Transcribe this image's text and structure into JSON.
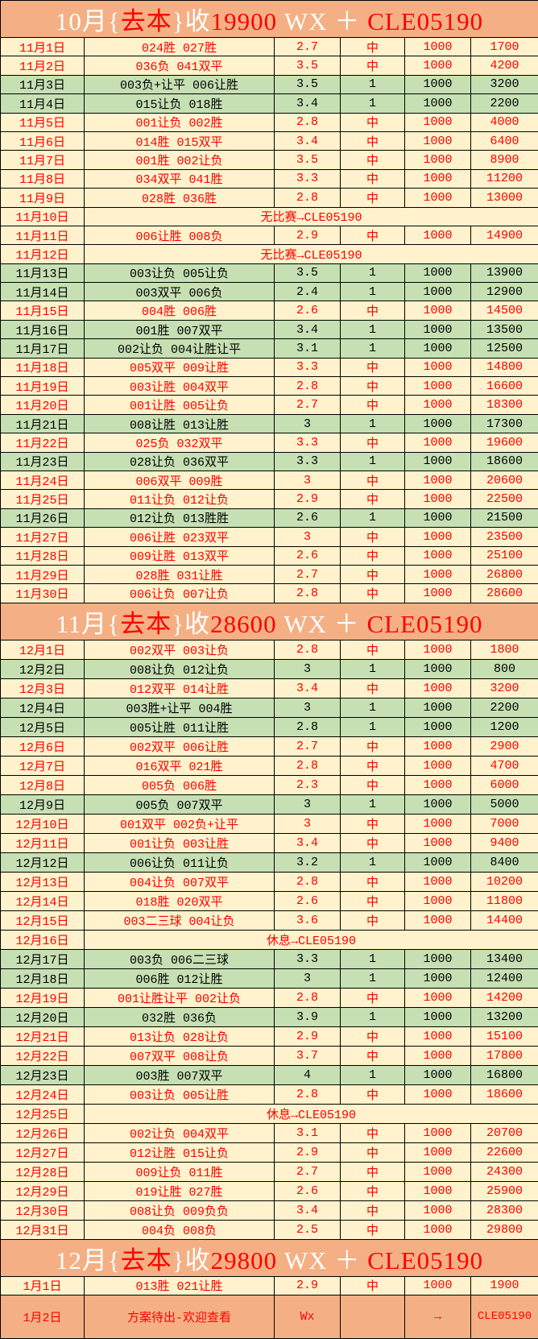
{
  "colors": {
    "header_bg": "#f4b084",
    "win_bg": "#fff2cc",
    "lose_bg": "#c6e0b4",
    "red": "#ff0000"
  },
  "sections": [
    {
      "header": [
        {
          "t": "10月",
          "c": "w"
        },
        {
          "t": "{",
          "c": "w"
        },
        {
          "t": "去本",
          "c": "r"
        },
        {
          "t": "}",
          "c": "w"
        },
        {
          "t": "收",
          "c": "w"
        },
        {
          "t": "19900",
          "c": "r"
        },
        {
          "t": " WX ",
          "c": "w"
        },
        {
          "t": "＋",
          "c": "w"
        },
        {
          "t": " CLE05190",
          "c": "r"
        }
      ],
      "cls": "nov",
      "rows": [
        [
          "11月1日",
          "024胜 027胜",
          "2.7",
          "中",
          "1000",
          "1700"
        ],
        [
          "11月2日",
          "036负 041双平",
          "3.5",
          "中",
          "1000",
          "4200"
        ],
        [
          "11月3日",
          "003负+让平 006让胜",
          "3.5",
          "1",
          "1000",
          "3200"
        ],
        [
          "11月4日",
          "015让负 018胜",
          "3.4",
          "1",
          "1000",
          "2200"
        ],
        [
          "11月5日",
          "001让负 002胜",
          "2.8",
          "中",
          "1000",
          "4000"
        ],
        [
          "11月6日",
          "014胜 015双平",
          "3.4",
          "中",
          "1000",
          "6400"
        ],
        [
          "11月7日",
          "001胜 002让负",
          "3.5",
          "中",
          "1000",
          "8900"
        ],
        [
          "11月8日",
          "034双平 041胜",
          "3.3",
          "中",
          "1000",
          "11200"
        ],
        [
          "11月9日",
          "028胜 036胜",
          "2.8",
          "中",
          "1000",
          "13000"
        ],
        [
          "11月10日",
          "无比赛→CLE05190"
        ],
        [
          "11月11日",
          "006让胜 008负",
          "2.9",
          "中",
          "1000",
          "14900"
        ],
        [
          "11月12日",
          "无比赛→CLE05190"
        ],
        [
          "11月13日",
          "003让负 005让负",
          "3.5",
          "1",
          "1000",
          "13900"
        ],
        [
          "11月14日",
          "003双平 006负",
          "2.4",
          "1",
          "1000",
          "12900"
        ],
        [
          "11月15日",
          "004胜 006胜",
          "2.6",
          "中",
          "1000",
          "14500"
        ],
        [
          "11月16日",
          "001胜 007双平",
          "3.4",
          "1",
          "1000",
          "13500"
        ],
        [
          "11月17日",
          "002让负 004让胜让平",
          "3.1",
          "1",
          "1000",
          "12500"
        ],
        [
          "11月18日",
          "005双平 009让胜",
          "3.3",
          "中",
          "1000",
          "14800"
        ],
        [
          "11月19日",
          "003让胜 004双平",
          "2.8",
          "中",
          "1000",
          "16600"
        ],
        [
          "11月20日",
          "001让胜 005让负",
          "2.7",
          "中",
          "1000",
          "18300"
        ],
        [
          "11月21日",
          "008让胜 013让胜",
          "3",
          "1",
          "1000",
          "17300"
        ],
        [
          "11月22日",
          "025负 032双平",
          "3.3",
          "中",
          "1000",
          "19600"
        ],
        [
          "11月23日",
          "028让负 036双平",
          "3.3",
          "1",
          "1000",
          "18600"
        ],
        [
          "11月24日",
          "006双平 009胜",
          "3",
          "中",
          "1000",
          "20600"
        ],
        [
          "11月25日",
          "011让负 012让负",
          "2.9",
          "中",
          "1000",
          "22500"
        ],
        [
          "11月26日",
          "012让负 013胜胜",
          "2.6",
          "1",
          "1000",
          "21500"
        ],
        [
          "11月27日",
          "006让胜 023双平",
          "3",
          "中",
          "1000",
          "23500"
        ],
        [
          "11月28日",
          "009让胜 013双平",
          "2.6",
          "中",
          "1000",
          "25100"
        ],
        [
          "11月29日",
          "028胜 031让胜",
          "2.7",
          "中",
          "1000",
          "26800"
        ],
        [
          "11月30日",
          "006让负 007让负",
          "2.8",
          "中",
          "1000",
          "28600"
        ]
      ]
    },
    {
      "header": [
        {
          "t": "11月",
          "c": "w"
        },
        {
          "t": "{",
          "c": "w"
        },
        {
          "t": "去本",
          "c": "r"
        },
        {
          "t": "}",
          "c": "w"
        },
        {
          "t": "收",
          "c": "w"
        },
        {
          "t": "28600",
          "c": "r"
        },
        {
          "t": " WX ",
          "c": "w"
        },
        {
          "t": "＋",
          "c": "w"
        },
        {
          "t": " CLE05190",
          "c": "r"
        }
      ],
      "cls": "dec",
      "rows": [
        [
          "12月1日",
          "002双平 003让负",
          "2.8",
          "中",
          "1000",
          "1800"
        ],
        [
          "12月2日",
          "008让负 012让负",
          "3",
          "1",
          "1000",
          "800"
        ],
        [
          "12月3日",
          "012双平 014让胜",
          "3.4",
          "中",
          "1000",
          "3200"
        ],
        [
          "12月4日",
          "003胜+让平 004胜",
          "3",
          "1",
          "1000",
          "2200"
        ],
        [
          "12月5日",
          "005让胜 011让胜",
          "2.8",
          "1",
          "1000",
          "1200"
        ],
        [
          "12月6日",
          "002双平 006让胜",
          "2.7",
          "中",
          "1000",
          "2900"
        ],
        [
          "12月7日",
          "016双平 021胜",
          "2.8",
          "中",
          "1000",
          "4700"
        ],
        [
          "12月8日",
          "005负 006胜",
          "2.3",
          "中",
          "1000",
          "6000"
        ],
        [
          "12月9日",
          "005负 007双平",
          "3",
          "1",
          "1000",
          "5000"
        ],
        [
          "12月10日",
          "001双平 002负+让平",
          "3",
          "中",
          "1000",
          "7000"
        ],
        [
          "12月11日",
          "001让负 003让胜",
          "3.4",
          "中",
          "1000",
          "9400"
        ],
        [
          "12月12日",
          "006让负 011让负",
          "3.2",
          "1",
          "1000",
          "8400"
        ],
        [
          "12月13日",
          "004让负 007双平",
          "2.8",
          "中",
          "1000",
          "10200"
        ],
        [
          "12月14日",
          "018胜 020双平",
          "2.6",
          "中",
          "1000",
          "11800"
        ],
        [
          "12月15日",
          "003二三球 004让负",
          "3.6",
          "中",
          "1000",
          "14400"
        ],
        [
          "12月16日",
          "休息→CLE05190"
        ],
        [
          "12月17日",
          "003负 006二三球",
          "3.3",
          "1",
          "1000",
          "13400"
        ],
        [
          "12月18日",
          "006胜 012让胜",
          "3",
          "1",
          "1000",
          "12400"
        ],
        [
          "12月19日",
          "001让胜让平 002让负",
          "2.8",
          "中",
          "1000",
          "14200"
        ],
        [
          "12月20日",
          "032胜 036负",
          "3.9",
          "1",
          "1000",
          "13200"
        ],
        [
          "12月21日",
          "013让负 028让负",
          "2.9",
          "中",
          "1000",
          "15100"
        ],
        [
          "12月22日",
          "007双平 008让负",
          "3.7",
          "中",
          "1000",
          "17800"
        ],
        [
          "12月23日",
          "003胜 007双平",
          "4",
          "1",
          "1000",
          "16800"
        ],
        [
          "12月24日",
          "003让负 005让胜",
          "2.8",
          "中",
          "1000",
          "18600"
        ],
        [
          "12月25日",
          "休息→CLE05190"
        ],
        [
          "12月26日",
          "002让负 004双平",
          "3.1",
          "中",
          "1000",
          "20700"
        ],
        [
          "12月27日",
          "012让胜 015让负",
          "2.9",
          "中",
          "1000",
          "22600"
        ],
        [
          "12月28日",
          "009让负 011胜",
          "2.7",
          "中",
          "1000",
          "24300"
        ],
        [
          "12月29日",
          "019让胜 027胜",
          "2.6",
          "中",
          "1000",
          "25900"
        ],
        [
          "12月30日",
          "008让负 009负负",
          "3.4",
          "中",
          "1000",
          "28300"
        ],
        [
          "12月31日",
          "004负 008负",
          "2.5",
          "中",
          "1000",
          "29800"
        ]
      ]
    },
    {
      "header": [
        {
          "t": "12月",
          "c": "w"
        },
        {
          "t": "{",
          "c": "w"
        },
        {
          "t": "去本",
          "c": "r"
        },
        {
          "t": "}",
          "c": "w"
        },
        {
          "t": "收",
          "c": "w"
        },
        {
          "t": "29800",
          "c": "r"
        },
        {
          "t": " WX ",
          "c": "w"
        },
        {
          "t": "＋",
          "c": "w"
        },
        {
          "t": " CLE05190",
          "c": "r"
        }
      ],
      "cls": "jan",
      "rows": [
        [
          "1月1日",
          "013胜 021让胜",
          "2.9",
          "中",
          "1000",
          "1900"
        ]
      ]
    }
  ],
  "last_row": [
    "1月2日",
    "方案待出-欢迎查看",
    "Wx",
    "",
    "→",
    "CLE05190"
  ]
}
